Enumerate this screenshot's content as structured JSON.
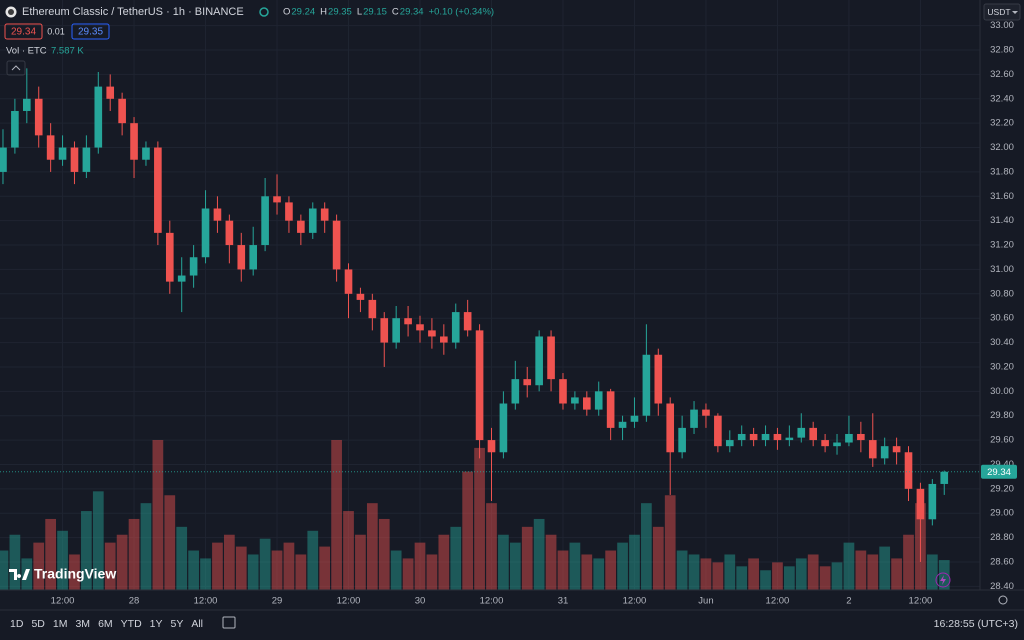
{
  "chart_data": {
    "type": "candlestick",
    "title": "Ethereum Classic / TetherUS · 1h · BINANCE",
    "ohlc_labels": [
      "O",
      "H",
      "L",
      "C"
    ],
    "change_label": "+0.10 (+0.34%)",
    "quote": {
      "bid": 29.34,
      "spread": 0.01,
      "ask": 29.35
    },
    "volume_title": "Vol · ETC",
    "volume_last_label": "7.587 K",
    "currency": "USDT",
    "up_color": "#26a69a",
    "down_color": "#ef5350",
    "open": [
      31.8,
      32.0,
      32.3,
      32.4,
      32.1,
      31.9,
      32.0,
      31.8,
      32.0,
      32.5,
      32.4,
      32.2,
      31.9,
      32.0,
      31.3,
      30.9,
      30.95,
      31.1,
      31.5,
      31.4,
      31.2,
      31.0,
      31.2,
      31.6,
      31.55,
      31.4,
      31.3,
      31.5,
      31.4,
      31.0,
      30.8,
      30.75,
      30.6,
      30.4,
      30.6,
      30.55,
      30.5,
      30.45,
      30.4,
      30.65,
      30.5,
      29.6,
      29.5,
      29.9,
      30.1,
      30.05,
      30.45,
      30.1,
      29.9,
      29.95,
      29.85,
      30.0,
      29.7,
      29.75,
      29.8,
      30.3,
      29.9,
      29.5,
      29.7,
      29.85,
      29.8,
      29.55,
      29.6,
      29.65,
      29.6,
      29.65,
      29.6,
      29.62,
      29.7,
      29.6,
      29.55,
      29.58,
      29.65,
      29.6,
      29.45,
      29.55,
      29.5,
      29.2,
      28.95,
      29.24
    ],
    "high": [
      32.15,
      32.4,
      32.65,
      32.5,
      32.2,
      32.1,
      32.05,
      32.1,
      32.62,
      32.6,
      32.45,
      32.25,
      32.05,
      32.05,
      31.4,
      31.1,
      31.2,
      31.65,
      31.6,
      31.45,
      31.3,
      31.35,
      31.75,
      31.78,
      31.6,
      31.45,
      31.55,
      31.55,
      31.45,
      31.05,
      30.85,
      30.8,
      30.65,
      30.7,
      30.7,
      30.62,
      30.6,
      30.55,
      30.72,
      30.75,
      30.55,
      29.7,
      30.0,
      30.25,
      30.2,
      30.5,
      30.5,
      30.15,
      30.0,
      30.0,
      30.08,
      30.02,
      29.8,
      29.95,
      30.55,
      30.35,
      29.95,
      29.8,
      29.92,
      29.9,
      29.82,
      29.68,
      29.72,
      29.7,
      29.72,
      29.7,
      29.72,
      29.82,
      29.75,
      29.65,
      29.65,
      29.8,
      29.75,
      29.82,
      29.62,
      29.62,
      29.55,
      29.25,
      29.28,
      29.35
    ],
    "low": [
      31.7,
      31.95,
      32.2,
      32.0,
      31.8,
      31.85,
      31.7,
      31.75,
      31.95,
      32.3,
      32.1,
      31.75,
      31.85,
      31.2,
      30.8,
      30.65,
      30.85,
      31.05,
      31.3,
      31.05,
      30.9,
      30.95,
      31.15,
      31.45,
      31.3,
      31.2,
      31.25,
      31.3,
      30.9,
      30.6,
      30.65,
      30.5,
      30.2,
      30.35,
      30.45,
      30.4,
      30.35,
      30.3,
      30.35,
      30.45,
      29.45,
      29.1,
      29.45,
      29.85,
      29.95,
      30.0,
      30.0,
      29.85,
      29.85,
      29.8,
      29.8,
      29.6,
      29.6,
      29.7,
      29.75,
      29.8,
      29.15,
      29.45,
      29.65,
      29.7,
      29.5,
      29.5,
      29.55,
      29.55,
      29.55,
      29.52,
      29.55,
      29.58,
      29.55,
      29.5,
      29.48,
      29.55,
      29.5,
      29.38,
      29.4,
      29.4,
      29.1,
      28.6,
      28.9,
      29.15
    ],
    "close": [
      32.0,
      32.3,
      32.4,
      32.1,
      31.9,
      32.0,
      31.8,
      32.0,
      32.5,
      32.4,
      32.2,
      31.9,
      32.0,
      31.3,
      30.9,
      30.95,
      31.1,
      31.5,
      31.4,
      31.2,
      31.0,
      31.2,
      31.6,
      31.55,
      31.4,
      31.3,
      31.5,
      31.4,
      31.0,
      30.8,
      30.75,
      30.6,
      30.4,
      30.6,
      30.55,
      30.5,
      30.45,
      30.4,
      30.65,
      30.5,
      29.6,
      29.5,
      29.9,
      30.1,
      30.05,
      30.45,
      30.1,
      29.9,
      29.95,
      29.85,
      30.0,
      29.7,
      29.75,
      29.8,
      30.3,
      29.9,
      29.5,
      29.7,
      29.85,
      29.8,
      29.55,
      29.6,
      29.65,
      29.6,
      29.65,
      29.6,
      29.62,
      29.7,
      29.6,
      29.55,
      29.58,
      29.65,
      29.6,
      29.45,
      29.55,
      29.5,
      29.2,
      28.95,
      29.24,
      29.34
    ],
    "volume": [
      10,
      14,
      8,
      12,
      18,
      15,
      9,
      20,
      25,
      12,
      14,
      18,
      22,
      38,
      24,
      16,
      10,
      8,
      12,
      14,
      11,
      9,
      13,
      10,
      12,
      9,
      15,
      11,
      38,
      20,
      14,
      22,
      18,
      10,
      8,
      12,
      9,
      14,
      16,
      30,
      36,
      22,
      14,
      12,
      16,
      18,
      14,
      10,
      12,
      9,
      8,
      10,
      12,
      14,
      22,
      16,
      24,
      10,
      9,
      8,
      7,
      9,
      6,
      8,
      5,
      7,
      6,
      8,
      9,
      6,
      7,
      12,
      10,
      9,
      11,
      8,
      14,
      22,
      9,
      7.587
    ],
    "xlim": [
      -0.25,
      82
    ],
    "xticks": [
      {
        "value": 5,
        "label": "12:00"
      },
      {
        "value": 11,
        "label": "28"
      },
      {
        "value": 17,
        "label": "12:00"
      },
      {
        "value": 23,
        "label": "29"
      },
      {
        "value": 29,
        "label": "12:00"
      },
      {
        "value": 35,
        "label": "30"
      },
      {
        "value": 41,
        "label": "12:00"
      },
      {
        "value": 47,
        "label": "31"
      },
      {
        "value": 53,
        "label": "12:00"
      },
      {
        "value": 59,
        "label": "Jun"
      },
      {
        "value": 65,
        "label": "12:00"
      },
      {
        "value": 71,
        "label": "2"
      },
      {
        "value": 77,
        "label": "12:00"
      }
    ],
    "ylim": [
      28.37,
      33.03
    ],
    "yticks": [
      {
        "value": 28.4,
        "label": "28.40"
      },
      {
        "value": 28.6,
        "label": "28.60"
      },
      {
        "value": 28.8,
        "label": "28.80"
      },
      {
        "value": 29.0,
        "label": "29.00"
      },
      {
        "value": 29.2,
        "label": "29.20"
      },
      {
        "value": 29.4,
        "label": "29.40"
      },
      {
        "value": 29.6,
        "label": "29.60"
      },
      {
        "value": 29.8,
        "label": "29.80"
      },
      {
        "value": 30.0,
        "label": "30.00"
      },
      {
        "value": 30.2,
        "label": "30.20"
      },
      {
        "value": 30.4,
        "label": "30.40"
      },
      {
        "value": 30.6,
        "label": "30.60"
      },
      {
        "value": 30.8,
        "label": "30.80"
      },
      {
        "value": 31.0,
        "label": "31.00"
      },
      {
        "value": 31.2,
        "label": "31.20"
      },
      {
        "value": 31.4,
        "label": "31.40"
      },
      {
        "value": 31.6,
        "label": "31.60"
      },
      {
        "value": 31.8,
        "label": "31.80"
      },
      {
        "value": 32.0,
        "label": "32.00"
      },
      {
        "value": 32.2,
        "label": "32.20"
      },
      {
        "value": 32.4,
        "label": "32.40"
      },
      {
        "value": 32.6,
        "label": "32.60"
      },
      {
        "value": 32.8,
        "label": "32.80"
      },
      {
        "value": 33.0,
        "label": "33.00"
      }
    ],
    "grid": true
  },
  "toolbar": {
    "ranges": [
      "1D",
      "5D",
      "1M",
      "3M",
      "6M",
      "YTD",
      "1Y",
      "5Y",
      "All"
    ],
    "clock": "16:28:55 (UTC+3)"
  },
  "logo": "TradingView"
}
